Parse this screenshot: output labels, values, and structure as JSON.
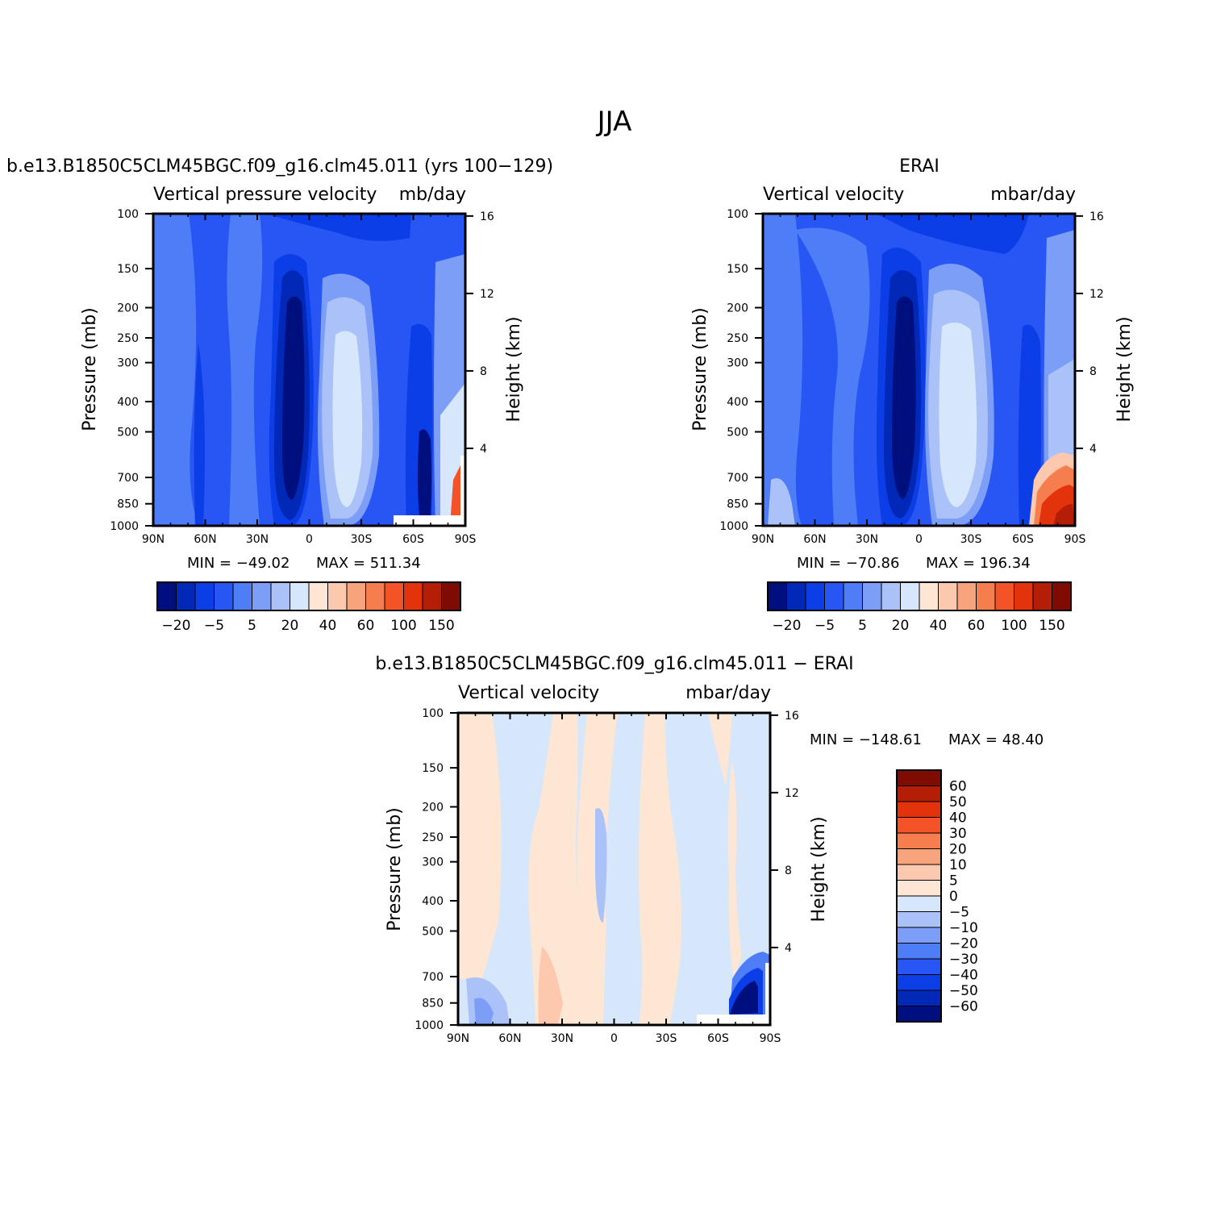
{
  "figure": {
    "title": "JJA"
  },
  "chart_data": [
    {
      "type": "heatmap",
      "title": "b.e13.B1850C5CLM45BGC.f09_g16.clm45.011 (yrs 100−129)",
      "left_label": "Vertical pressure velocity",
      "right_label": "mb/day",
      "xlabel": "",
      "ylabel": "Pressure (mb)",
      "ylabel_right": "Height (km)",
      "x_ticks": [
        "90N",
        "60N",
        "30N",
        "0",
        "30S",
        "60S",
        "90S"
      ],
      "x_values": [
        90,
        60,
        30,
        0,
        -30,
        -60,
        -90
      ],
      "xlim": [
        90,
        -90
      ],
      "y_ticks": [
        100,
        150,
        200,
        250,
        300,
        400,
        500,
        700,
        850,
        1000
      ],
      "y_scale": "log",
      "ylim": [
        1000,
        100
      ],
      "height_ticks": [
        16,
        12,
        8,
        4
      ],
      "min_label": "MIN = −49.02",
      "max_label": "MAX = 511.34",
      "min": -49.02,
      "max": 511.34,
      "colorbar_labels": [
        "−20",
        "−5",
        "5",
        "20",
        "40",
        "60",
        "100",
        "150"
      ],
      "field": "model"
    },
    {
      "type": "heatmap",
      "title": "ERAI",
      "left_label": "Vertical velocity",
      "right_label": "mbar/day",
      "xlabel": "",
      "ylabel": "Pressure (mb)",
      "ylabel_right": "Height (km)",
      "x_ticks": [
        "90N",
        "60N",
        "30N",
        "0",
        "30S",
        "60S",
        "90S"
      ],
      "x_values": [
        90,
        60,
        30,
        0,
        -30,
        -60,
        -90
      ],
      "xlim": [
        90,
        -90
      ],
      "y_ticks": [
        100,
        150,
        200,
        250,
        300,
        400,
        500,
        700,
        850,
        1000
      ],
      "y_scale": "log",
      "ylim": [
        1000,
        100
      ],
      "height_ticks": [
        16,
        12,
        8,
        4
      ],
      "min_label": "MIN = −70.86",
      "max_label": "MAX = 196.34",
      "min": -70.86,
      "max": 196.34,
      "colorbar_labels": [
        "−20",
        "−5",
        "5",
        "20",
        "40",
        "60",
        "100",
        "150"
      ],
      "field": "obs"
    },
    {
      "type": "heatmap",
      "title": "b.e13.B1850C5CLM45BGC.f09_g16.clm45.011 − ERAI",
      "left_label": "Vertical velocity",
      "right_label": "mbar/day",
      "xlabel": "",
      "ylabel": "Pressure (mb)",
      "ylabel_right": "Height (km)",
      "x_ticks": [
        "90N",
        "60N",
        "30N",
        "0",
        "30S",
        "60S",
        "90S"
      ],
      "x_values": [
        90,
        60,
        30,
        0,
        -30,
        -60,
        -90
      ],
      "xlim": [
        90,
        -90
      ],
      "y_ticks": [
        100,
        150,
        200,
        250,
        300,
        400,
        500,
        700,
        850,
        1000
      ],
      "y_scale": "log",
      "ylim": [
        1000,
        100
      ],
      "height_ticks": [
        16,
        12,
        8,
        4
      ],
      "min_label": "MIN = −148.61",
      "max_label": "MAX =   48.40",
      "min": -148.61,
      "max": 48.4,
      "colorbar_labels": [
        "60",
        "50",
        "40",
        "30",
        "20",
        "10",
        "5",
        "0",
        "−5",
        "−10",
        "−20",
        "−30",
        "−40",
        "−50",
        "−60"
      ],
      "field": "diff"
    }
  ],
  "colors": {
    "main_scale": [
      "#000f7e",
      "#0228b8",
      "#0c3ee8",
      "#2756f5",
      "#4f7cf7",
      "#7d9ef6",
      "#aac2f8",
      "#d6e6fb",
      "#fee6d4",
      "#fcc9ae",
      "#f7a37c",
      "#f67d4e",
      "#f45328",
      "#e2330d",
      "#b41d06",
      "#7f0c03"
    ],
    "diff_scale": [
      "#000f7e",
      "#0228b8",
      "#0c3ee8",
      "#2756f5",
      "#4f7cf7",
      "#7d9ef6",
      "#aac2f8",
      "#d6e6fb",
      "#fee6d4",
      "#fcc9ae",
      "#f7a37c",
      "#f67d4e",
      "#f45328",
      "#e2330d",
      "#b41d06",
      "#7f0c03"
    ]
  }
}
